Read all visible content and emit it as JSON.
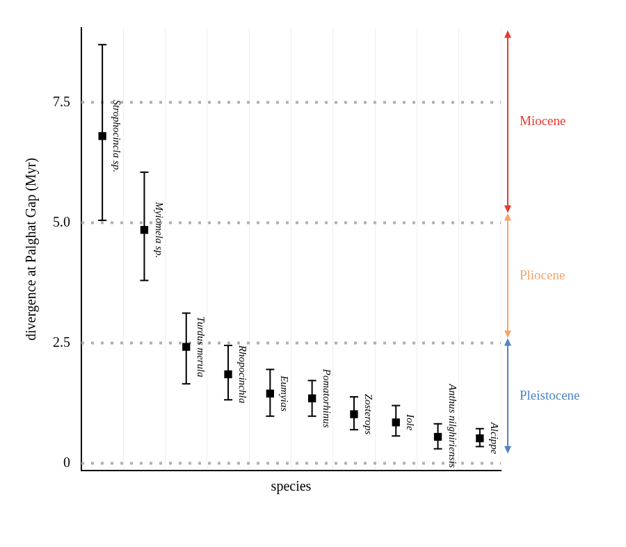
{
  "chart_data": {
    "type": "scatter",
    "x_label": "species",
    "y_label": "divergence at Palghat Gap (Myr)",
    "categories": [
      "Strophocincla sp.",
      "Myiomela sp.",
      "Turdus merula",
      "Rhopocinchla",
      "Eumyias",
      "Pomatorhinus",
      "Zosterops",
      "Iole",
      "Anthus nilghiriensis",
      "Alcippe"
    ],
    "values": [
      6.8,
      4.85,
      2.42,
      1.85,
      1.45,
      1.35,
      1.02,
      0.85,
      0.55,
      0.52
    ],
    "error_low": [
      5.05,
      3.8,
      1.65,
      1.32,
      0.98,
      0.98,
      0.7,
      0.57,
      0.3,
      0.35
    ],
    "error_high": [
      8.7,
      6.05,
      3.12,
      2.45,
      1.95,
      1.72,
      1.38,
      1.2,
      0.82,
      0.72
    ],
    "color": "#000000",
    "marker": "square",
    "ylim": [
      -0.15,
      9.05
    ],
    "yticks": [
      0,
      2.5,
      {
        "value": 5,
        "label": "5.0"
      },
      7.5
    ],
    "grid": true,
    "tick_labels": "y",
    "annotations": [
      {
        "label": "Miocene",
        "color": "#e8392c",
        "from": 5.2,
        "to": 9.0
      },
      {
        "label": "Pliocene",
        "color": "#f4a46a",
        "from": 2.6,
        "to": 5.2
      },
      {
        "label": "Pleistocene",
        "color": "#4f83c4",
        "from": 0.2,
        "to": 2.6
      }
    ]
  }
}
